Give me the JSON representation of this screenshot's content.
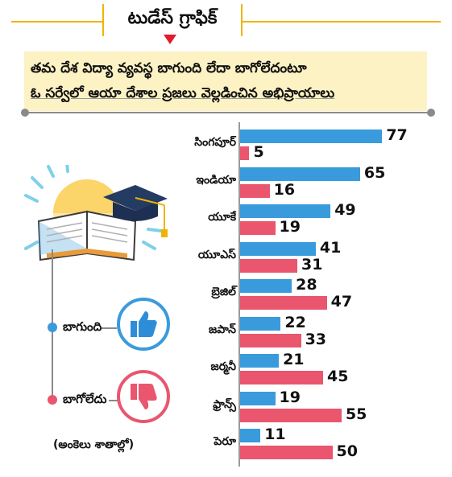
{
  "header": {
    "title": "టుడేస్ గ్రాఫిక్",
    "subtitle_line1": "తమ దేశ విద్యా వ్యవస్థ బాగుంది లేదా బాగోలేదంటూ",
    "subtitle_line2": "ఓ సర్వేలో ఆయా దేశాల ప్రజలు వెల్లడించిన అభిప్రాయాలు"
  },
  "legend": {
    "good_label": "బాగుంది",
    "bad_label": "బాగోలేదు",
    "unit_note": "(అంకెలు శాతాల్లో)"
  },
  "colors": {
    "good": "#3a9bdc",
    "bad": "#e9566e",
    "accent": "#f0b400",
    "marker": "#e21b2d"
  },
  "icons": [
    "book-graduation-cap-icon",
    "thumbs-up-icon",
    "thumbs-down-icon"
  ],
  "chart_data": {
    "type": "bar",
    "orientation": "horizontal",
    "unit": "%",
    "categories": [
      "సింగపూర్",
      "ఇండియా",
      "యూకే",
      "యూఎస్",
      "బ్రెజిల్",
      "జపాన్",
      "జర్మనీ",
      "ఫ్రాన్స్",
      "పెరూ"
    ],
    "series": [
      {
        "name": "బాగుంది",
        "values": [
          77,
          65,
          49,
          41,
          28,
          22,
          21,
          19,
          11
        ]
      },
      {
        "name": "బాగోలేదు",
        "values": [
          5,
          16,
          19,
          31,
          47,
          33,
          45,
          55,
          50
        ]
      }
    ],
    "xlim": [
      0,
      80
    ]
  }
}
